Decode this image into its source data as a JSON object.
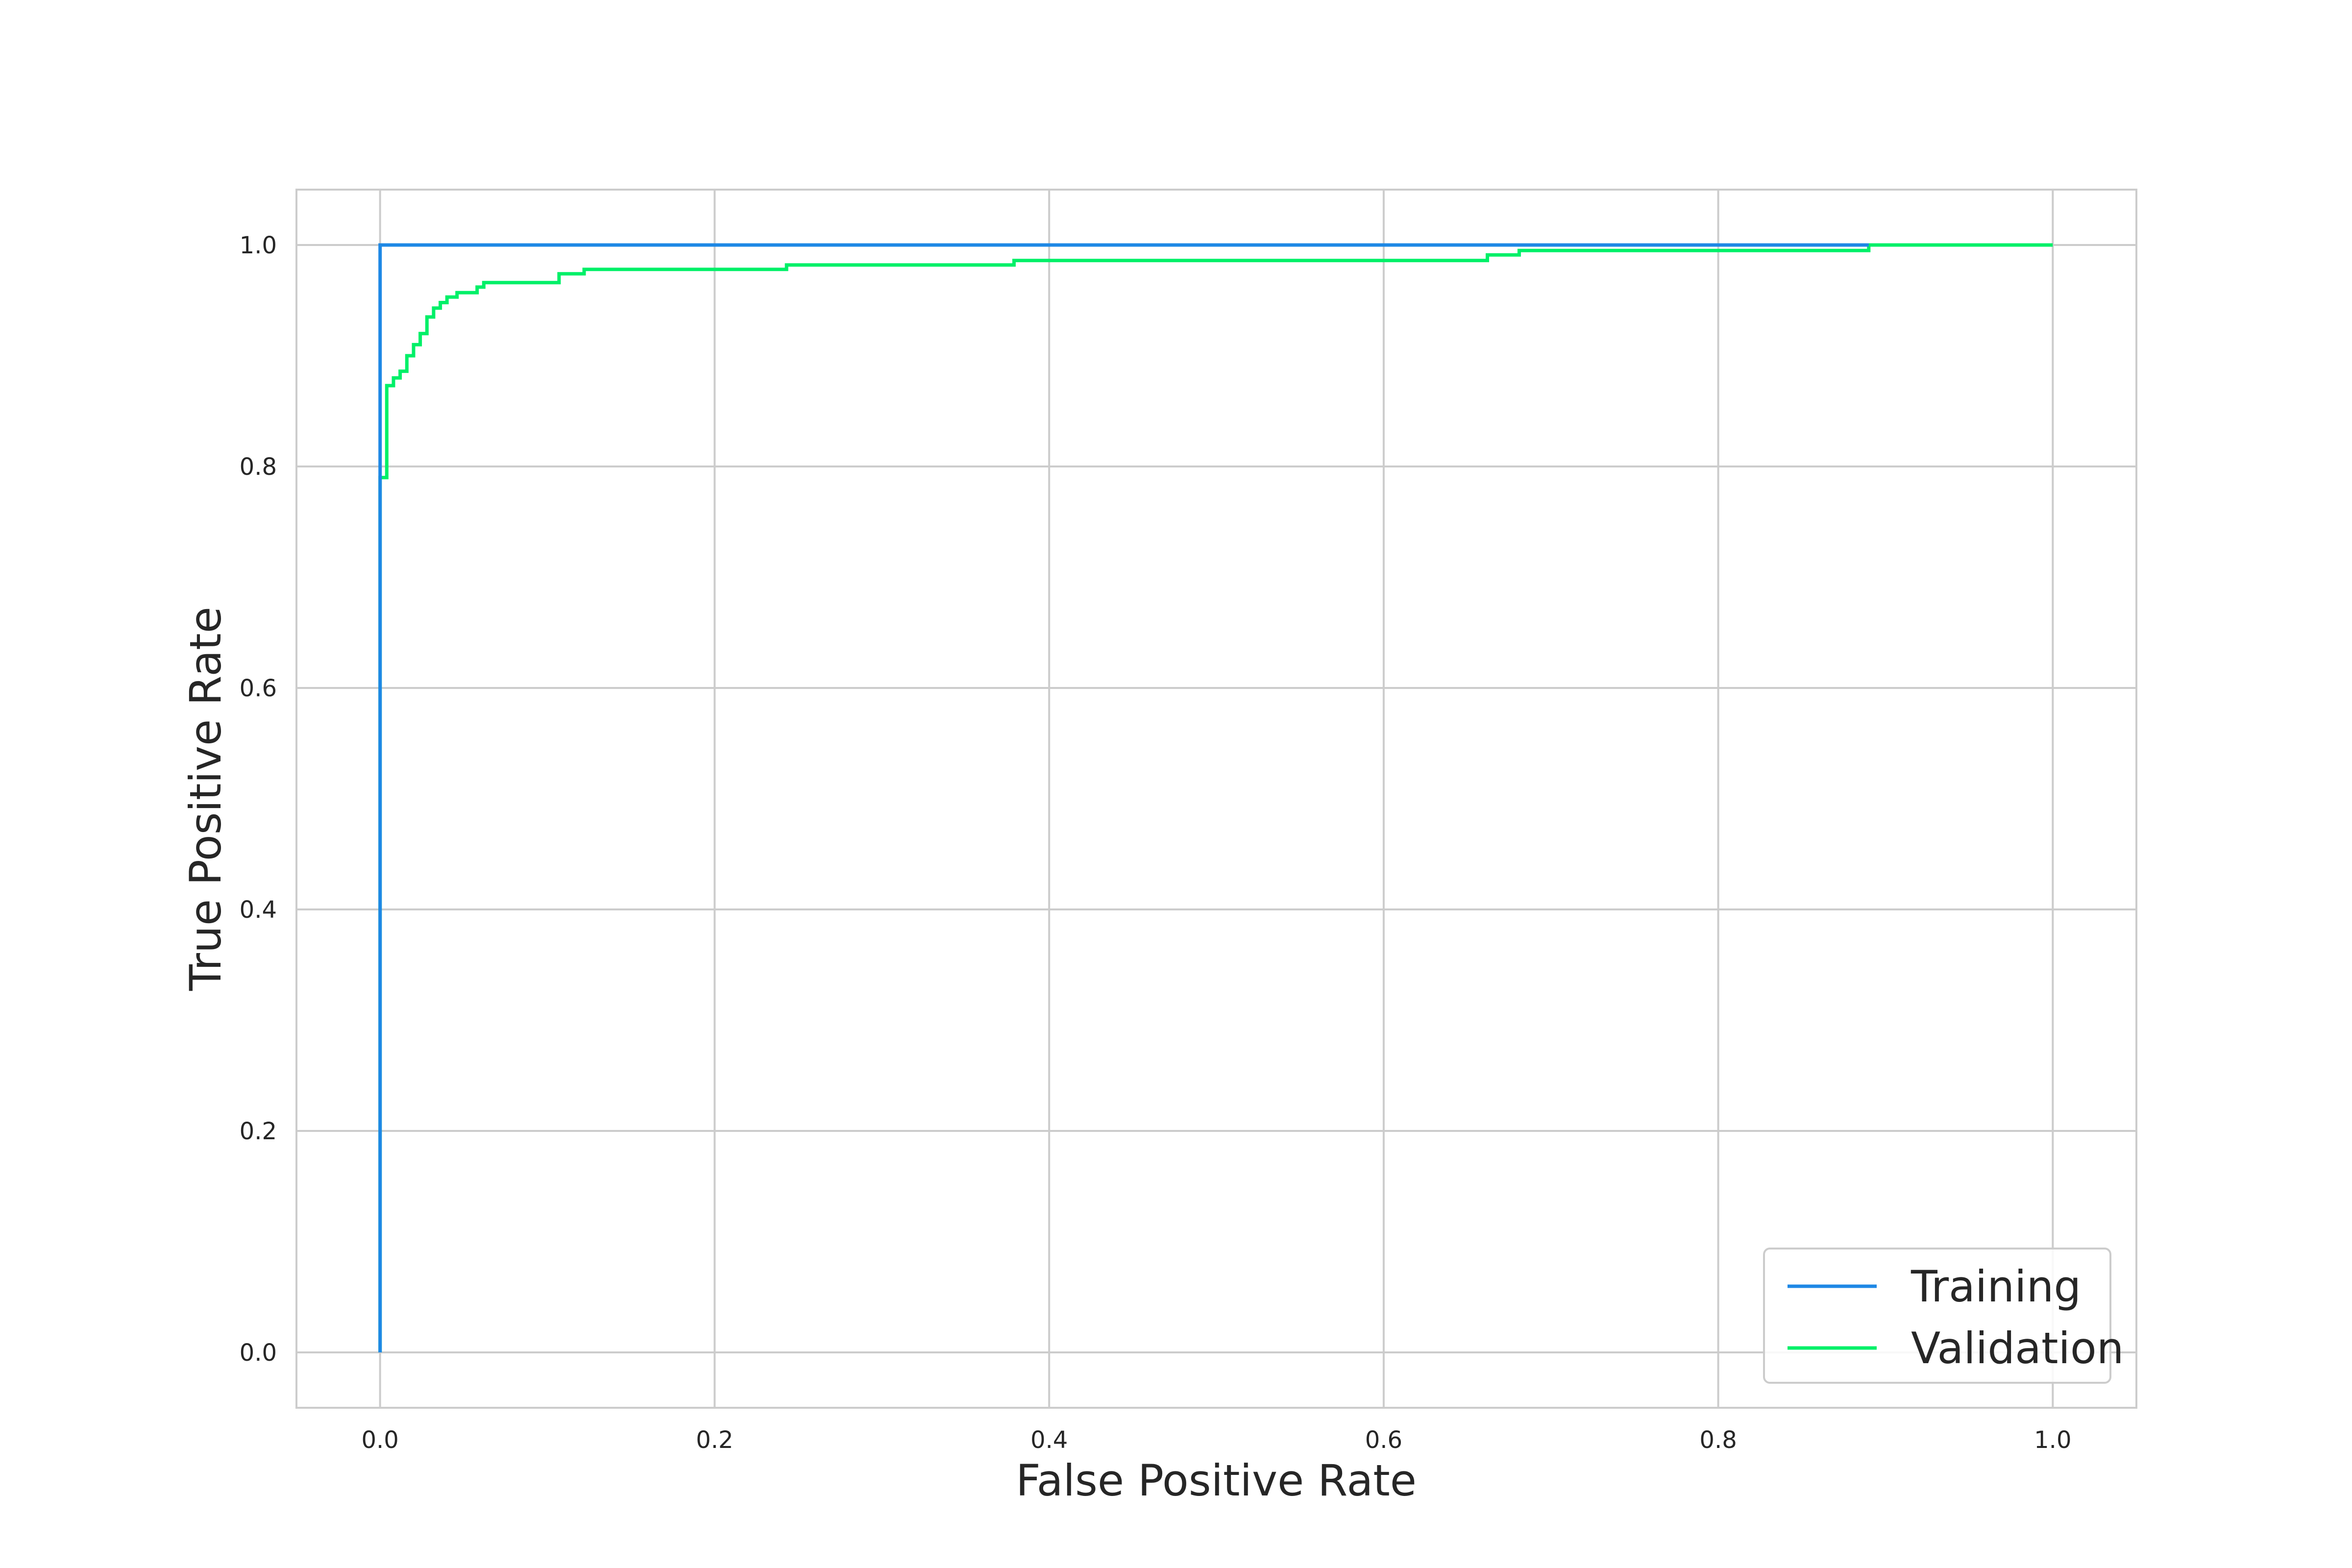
{
  "chart_data": {
    "type": "line",
    "title": "",
    "xlabel": "False Positive Rate",
    "ylabel": "True Positive Rate",
    "xlim": [
      -0.05,
      1.05
    ],
    "ylim": [
      -0.05,
      1.05
    ],
    "xticks": [
      0.0,
      0.2,
      0.4,
      0.6,
      0.8,
      1.0
    ],
    "xtick_labels": [
      "0.0",
      "0.2",
      "0.4",
      "0.6",
      "0.8",
      "1.0"
    ],
    "yticks": [
      0.0,
      0.2,
      0.4,
      0.6,
      0.8,
      1.0
    ],
    "ytick_labels": [
      "0.0",
      "0.2",
      "0.4",
      "0.6",
      "0.8",
      "1.0"
    ],
    "grid": true,
    "legend_position": "lower-right",
    "series": [
      {
        "name": "Training",
        "color": "#1e88e5",
        "x": [
          0.0,
          0.0,
          0.0,
          0.89
        ],
        "y": [
          0.0,
          0.79,
          1.0,
          1.0
        ]
      },
      {
        "name": "Validation",
        "color": "#00f068",
        "x": [
          0.0,
          0.0,
          0.0,
          0.004,
          0.004,
          0.008,
          0.008,
          0.012,
          0.012,
          0.016,
          0.016,
          0.02,
          0.02,
          0.024,
          0.024,
          0.028,
          0.028,
          0.032,
          0.032,
          0.036,
          0.036,
          0.04,
          0.04,
          0.046,
          0.046,
          0.058,
          0.058,
          0.062,
          0.062,
          0.107,
          0.107,
          0.122,
          0.122,
          0.243,
          0.243,
          0.379,
          0.379,
          0.662,
          0.662,
          0.681,
          0.681,
          0.89,
          0.89,
          1.0
        ],
        "y": [
          0.0,
          0.79,
          0.79,
          0.79,
          0.873,
          0.873,
          0.88,
          0.88,
          0.886,
          0.886,
          0.9,
          0.9,
          0.91,
          0.91,
          0.92,
          0.92,
          0.935,
          0.935,
          0.943,
          0.943,
          0.948,
          0.948,
          0.953,
          0.953,
          0.957,
          0.957,
          0.962,
          0.962,
          0.966,
          0.966,
          0.974,
          0.974,
          0.978,
          0.978,
          0.982,
          0.982,
          0.986,
          0.986,
          0.991,
          0.991,
          0.995,
          0.995,
          1.0,
          1.0
        ]
      }
    ]
  }
}
